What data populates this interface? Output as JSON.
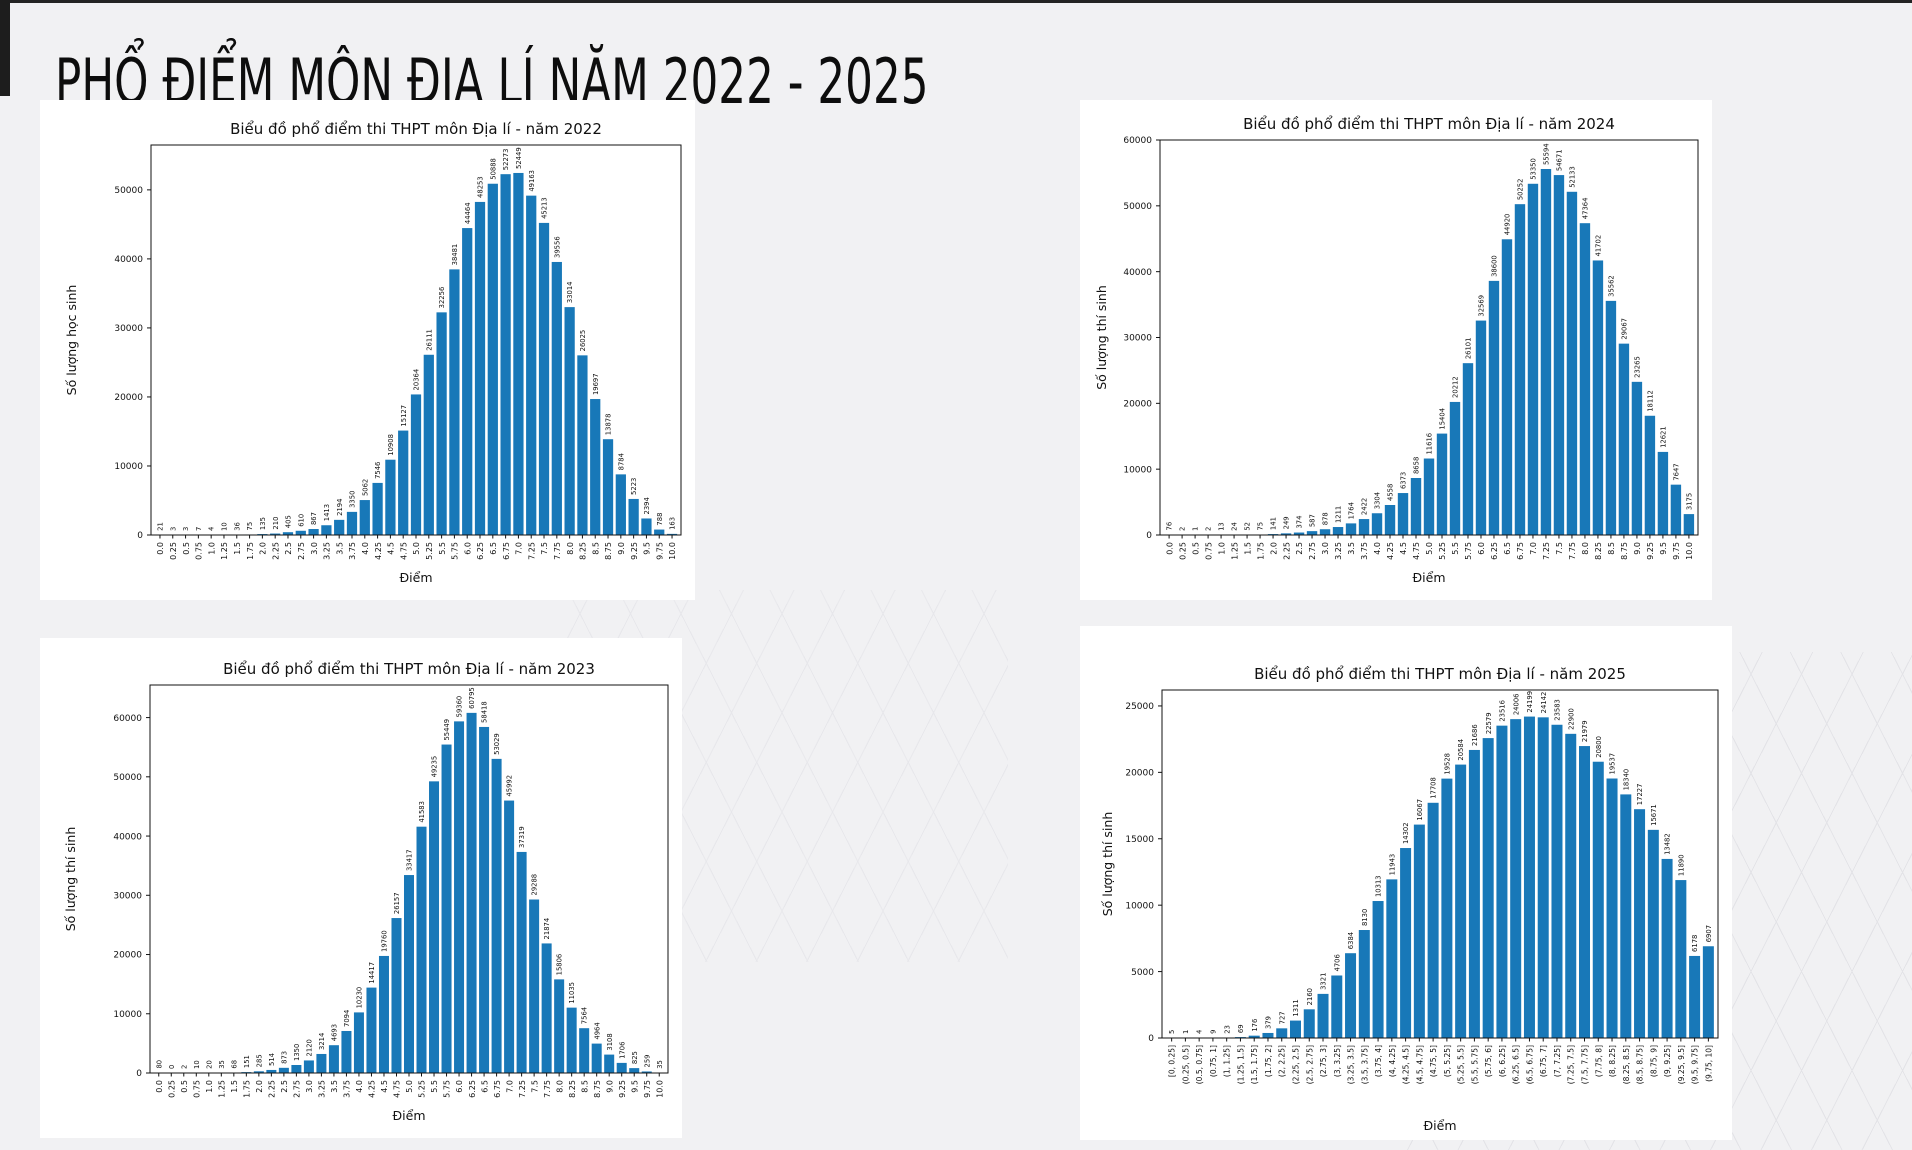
{
  "page": {
    "title": "PHỔ ĐIỂM MÔN ĐỊA LÍ NĂM 2022 - 2025",
    "background_color": "#f1f1f3",
    "panel_color": "#ffffff",
    "bar_color": "#1878b8",
    "text_color": "#111111"
  },
  "chart_data": [
    {
      "type": "bar",
      "year": "2022",
      "title": "Biểu đồ phổ điểm thi THPT môn Địa lí - năm 2022",
      "xlabel": "Điểm",
      "ylabel": "Số lượng học sinh",
      "ylim": [
        0,
        56500
      ],
      "yticks": [
        0,
        10000,
        20000,
        30000,
        40000,
        50000
      ],
      "grid": false,
      "legend": "none",
      "categories": [
        "0.0",
        "0.25",
        "0.5",
        "0.75",
        "1.0",
        "1.25",
        "1.5",
        "1.75",
        "2.0",
        "2.25",
        "2.5",
        "2.75",
        "3.0",
        "3.25",
        "3.5",
        "3.75",
        "4.0",
        "4.25",
        "4.5",
        "4.75",
        "5.0",
        "5.25",
        "5.5",
        "5.75",
        "6.0",
        "6.25",
        "6.5",
        "6.75",
        "7.0",
        "7.25",
        "7.5",
        "7.75",
        "8.0",
        "8.25",
        "8.5",
        "8.75",
        "9.0",
        "9.25",
        "9.5",
        "9.75",
        "10.0"
      ],
      "values": [
        21,
        3,
        3,
        7,
        4,
        10,
        36,
        75,
        135,
        210,
        405,
        610,
        867,
        1413,
        2194,
        3350,
        5062,
        7546,
        10908,
        15127,
        20364,
        26111,
        32256,
        38481,
        44464,
        48253,
        50888,
        52273,
        52449,
        49163,
        45213,
        39556,
        33014,
        26025,
        19697,
        13878,
        8784,
        5223,
        2394,
        788,
        163
      ]
    },
    {
      "type": "bar",
      "year": "2024",
      "title": "Biểu đồ phổ điểm thi THPT môn Địa lí - năm 2024",
      "xlabel": "Điểm",
      "ylabel": "Số lượng thí sinh",
      "ylim": [
        0,
        60000
      ],
      "yticks": [
        0,
        10000,
        20000,
        30000,
        40000,
        50000,
        60000
      ],
      "grid": false,
      "legend": "none",
      "categories": [
        "0.0",
        "0.25",
        "0.5",
        "0.75",
        "1.0",
        "1.25",
        "1.5",
        "1.75",
        "2.0",
        "2.25",
        "2.5",
        "2.75",
        "3.0",
        "3.25",
        "3.5",
        "3.75",
        "4.0",
        "4.25",
        "4.5",
        "4.75",
        "5.0",
        "5.25",
        "5.5",
        "5.75",
        "6.0",
        "6.25",
        "6.5",
        "6.75",
        "7.0",
        "7.25",
        "7.5",
        "7.75",
        "8.0",
        "8.25",
        "8.5",
        "8.75",
        "9.0",
        "9.25",
        "9.5",
        "9.75",
        "10.0"
      ],
      "values": [
        76,
        2,
        1,
        2,
        13,
        24,
        52,
        75,
        141,
        249,
        374,
        587,
        878,
        1211,
        1764,
        2422,
        3304,
        4558,
        6373,
        8658,
        11616,
        15404,
        20212,
        26101,
        32569,
        38600,
        44920,
        50252,
        53350,
        55594,
        54671,
        52133,
        47364,
        41702,
        35562,
        29067,
        23265,
        18112,
        12621,
        7647,
        3175
      ]
    },
    {
      "type": "bar",
      "year": "2023",
      "title": "Biểu đồ phổ điểm thi THPT môn Địa lí - năm 2023",
      "xlabel": "Điểm",
      "ylabel": "Số lượng thí sinh",
      "ylim": [
        0,
        65500
      ],
      "yticks": [
        0,
        10000,
        20000,
        30000,
        40000,
        50000,
        60000
      ],
      "grid": false,
      "legend": "none",
      "categories": [
        "0.0",
        "0.25",
        "0.5",
        "0.75",
        "1.0",
        "1.25",
        "1.5",
        "1.75",
        "2.0",
        "2.25",
        "2.5",
        "2.75",
        "3.0",
        "3.25",
        "3.5",
        "3.75",
        "4.0",
        "4.25",
        "4.5",
        "4.75",
        "5.0",
        "5.25",
        "5.5",
        "5.75",
        "6.0",
        "6.25",
        "6.5",
        "6.75",
        "7.0",
        "7.25",
        "7.5",
        "7.75",
        "8.0",
        "8.25",
        "8.5",
        "8.75",
        "9.0",
        "9.25",
        "9.5",
        "9.75",
        "10.0"
      ],
      "values": [
        80,
        0,
        2,
        10,
        20,
        35,
        68,
        151,
        285,
        514,
        873,
        1350,
        2120,
        3214,
        4693,
        7094,
        10230,
        14417,
        19760,
        26157,
        33417,
        41583,
        49235,
        55449,
        59360,
        60795,
        58418,
        53029,
        45992,
        37319,
        29288,
        21874,
        15806,
        11035,
        7564,
        4964,
        3108,
        1706,
        825,
        259,
        35
      ]
    },
    {
      "type": "bar",
      "year": "2025",
      "title": "Biểu đồ phổ điểm thi THPT môn Địa lí - năm 2025",
      "xlabel": "Điểm",
      "ylabel": "Số lượng thí sinh",
      "ylim": [
        0,
        26200
      ],
      "yticks": [
        0,
        5000,
        10000,
        15000,
        20000,
        25000
      ],
      "grid": false,
      "legend": "none",
      "categories": [
        "[0, 0.25]",
        "(0.25, 0.5]",
        "(0.5, 0.75]",
        "(0.75, 1]",
        "(1, 1.25]",
        "(1.25, 1.5]",
        "(1.5, 1.75]",
        "(1.75, 2]",
        "(2, 2.25]",
        "(2.25, 2.5]",
        "(2.5, 2.75]",
        "(2.75, 3]",
        "(3, 3.25]",
        "(3.25, 3.5]",
        "(3.5, 3.75]",
        "(3.75, 4]",
        "(4, 4.25]",
        "(4.25, 4.5]",
        "(4.5, 4.75]",
        "(4.75, 5]",
        "(5, 5.25]",
        "(5.25, 5.5]",
        "(5.5, 5.75]",
        "(5.75, 6]",
        "(6, 6.25]",
        "(6.25, 6.5]",
        "(6.5, 6.75]",
        "(6.75, 7]",
        "(7, 7.25]",
        "(7.25, 7.5]",
        "(7.5, 7.75]",
        "(7.75, 8]",
        "(8, 8.25]",
        "(8.25, 8.5]",
        "(8.5, 8.75]",
        "(8.75, 9]",
        "(9, 9.25]",
        "(9.25, 9.5]",
        "(9.5, 9.75]",
        "(9.75, 10]"
      ],
      "values": [
        5,
        1,
        4,
        9,
        23,
        69,
        176,
        379,
        727,
        1311,
        2160,
        3321,
        4706,
        6384,
        8130,
        10313,
        11943,
        14302,
        16067,
        17708,
        19528,
        20584,
        21686,
        22579,
        23516,
        24006,
        24199,
        24142,
        23583,
        22900,
        21979,
        20800,
        19537,
        18340,
        17227,
        15671,
        13482,
        11890,
        6178,
        6907
      ]
    }
  ]
}
